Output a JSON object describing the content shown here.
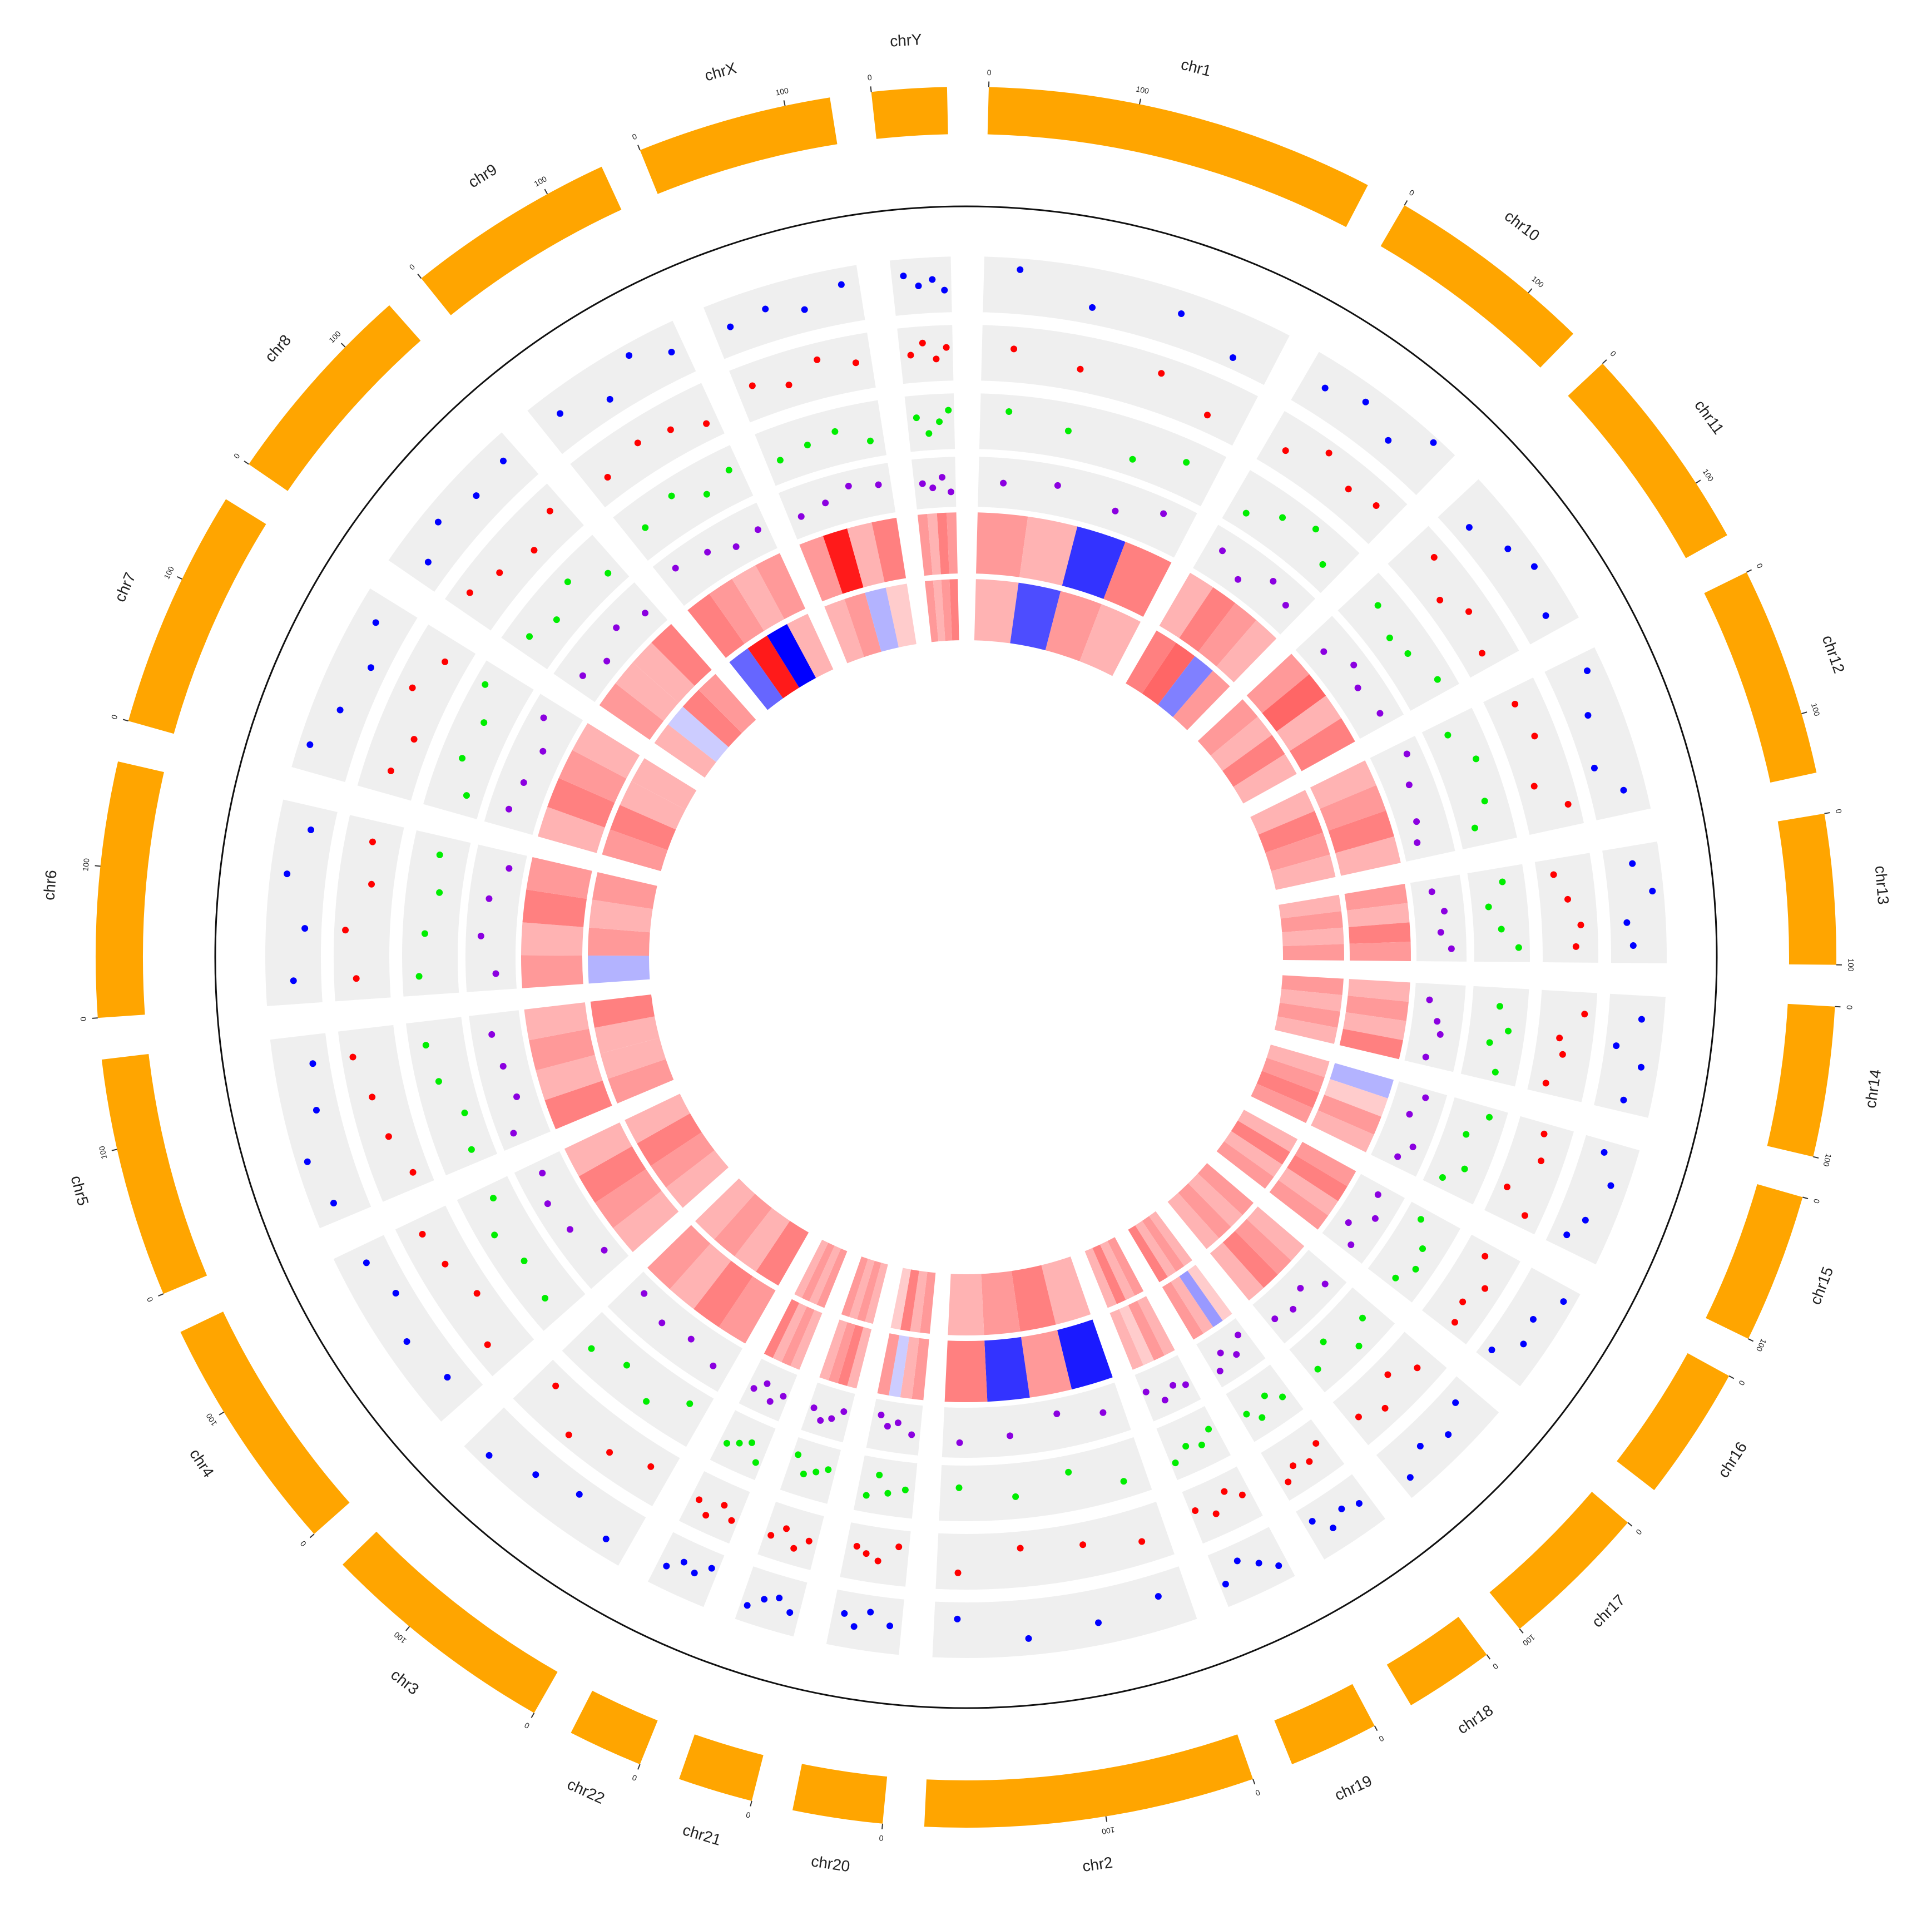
{
  "chart_data": {
    "type": "circos",
    "sectors": [
      "chr1",
      "chr10",
      "chr11",
      "chr12",
      "chr13",
      "chr14",
      "chr15",
      "chr16",
      "chr17",
      "chr18",
      "chr19",
      "chr2",
      "chr20",
      "chr21",
      "chr22",
      "chr3",
      "chr4",
      "chr5",
      "chr6",
      "chr7",
      "chr8",
      "chr9",
      "chrX",
      "chrY"
    ],
    "lengths": [
      260,
      140,
      140,
      140,
      100,
      100,
      100,
      90,
      100,
      60,
      60,
      220,
      60,
      50,
      50,
      160,
      160,
      160,
      170,
      160,
      140,
      140,
      130,
      50
    ],
    "axis_ticks": [
      0,
      100
    ],
    "ideogram_color": "#ffa500",
    "points_x": [
      [
        30,
        95,
        170,
        225
      ],
      [
        20,
        55,
        90,
        120
      ],
      [
        25,
        60,
        85,
        125
      ],
      [
        15,
        50,
        95,
        120
      ],
      [
        15,
        40,
        65,
        85
      ],
      [
        20,
        45,
        60,
        90
      ],
      [
        10,
        35,
        70,
        88
      ],
      [
        12,
        38,
        60,
        80
      ],
      [
        18,
        42,
        66,
        90
      ],
      [
        10,
        25,
        40,
        52
      ],
      [
        8,
        22,
        38,
        55
      ],
      [
        25,
        80,
        140,
        200
      ],
      [
        10,
        28,
        40,
        50
      ],
      [
        8,
        20,
        32,
        44
      ],
      [
        6,
        18,
        30,
        42
      ],
      [
        20,
        60,
        100,
        140
      ],
      [
        25,
        70,
        110,
        145
      ],
      [
        15,
        55,
        95,
        135
      ],
      [
        20,
        65,
        110,
        150
      ],
      [
        22,
        58,
        102,
        138
      ],
      [
        18,
        50,
        88,
        125
      ],
      [
        20,
        62,
        95,
        128
      ],
      [
        15,
        48,
        80,
        115
      ],
      [
        10,
        22,
        34,
        44
      ]
    ],
    "scatter_tracks": [
      {
        "color": "#0000ff",
        "ylim": [
          0,
          1
        ],
        "values": [
          [
            0.8,
            0.3,
            0.6,
            0.2
          ],
          [
            0.5,
            0.7,
            0.4,
            0.9
          ],
          [
            0.3,
            0.6,
            0.8,
            0.5
          ],
          [
            0.7,
            0.4,
            0.2,
            0.6
          ],
          [
            0.5,
            0.8,
            0.3,
            0.4
          ],
          [
            0.6,
            0.2,
            0.7,
            0.5
          ],
          [
            0.4,
            0.7,
            0.5,
            0.3
          ],
          [
            0.8,
            0.5,
            0.6,
            0.2
          ],
          [
            0.3,
            0.6,
            0.4,
            0.7
          ],
          [
            0.5,
            0.4,
            0.6,
            0.3
          ],
          [
            0.7,
            0.5,
            0.3,
            0.6
          ],
          [
            0.4,
            0.6,
            0.7,
            0.3
          ],
          [
            0.5,
            0.3,
            0.6,
            0.4
          ],
          [
            0.6,
            0.4,
            0.5,
            0.7
          ],
          [
            0.3,
            0.5,
            0.4,
            0.6
          ],
          [
            0.7,
            0.3,
            0.5,
            0.8
          ],
          [
            0.4,
            0.6,
            0.3,
            0.5
          ],
          [
            0.6,
            0.8,
            0.4,
            0.3
          ],
          [
            0.5,
            0.3,
            0.7,
            0.4
          ],
          [
            0.8,
            0.5,
            0.3,
            0.6
          ],
          [
            0.4,
            0.7,
            0.5,
            0.6
          ],
          [
            0.6,
            0.3,
            0.8,
            0.5
          ],
          [
            0.5,
            0.6,
            0.4,
            0.7
          ],
          [
            0.7,
            0.5,
            0.6,
            0.4
          ]
        ]
      },
      {
        "color": "#ff0000",
        "ylim": [
          0,
          1
        ],
        "values": [
          [
            0.6,
            0.4,
            0.7,
            0.3
          ],
          [
            0.4,
            0.8,
            0.5,
            0.6
          ],
          [
            0.7,
            0.3,
            0.6,
            0.4
          ],
          [
            0.5,
            0.6,
            0.3,
            0.8
          ],
          [
            0.3,
            0.5,
            0.7,
            0.6
          ],
          [
            0.8,
            0.4,
            0.5,
            0.3
          ],
          [
            0.5,
            0.6,
            0.2,
            0.7
          ],
          [
            0.4,
            0.7,
            0.5,
            0.6
          ],
          [
            0.6,
            0.3,
            0.7,
            0.5
          ],
          [
            0.4,
            0.6,
            0.5,
            0.7
          ],
          [
            0.5,
            0.3,
            0.6,
            0.4
          ],
          [
            0.6,
            0.4,
            0.3,
            0.7
          ],
          [
            0.3,
            0.6,
            0.5,
            0.4
          ],
          [
            0.5,
            0.7,
            0.4,
            0.6
          ],
          [
            0.6,
            0.4,
            0.7,
            0.5
          ],
          [
            0.4,
            0.6,
            0.8,
            0.3
          ],
          [
            0.7,
            0.3,
            0.5,
            0.6
          ],
          [
            0.3,
            0.5,
            0.6,
            0.8
          ],
          [
            0.6,
            0.8,
            0.4,
            0.5
          ],
          [
            0.5,
            0.3,
            0.7,
            0.4
          ],
          [
            0.7,
            0.5,
            0.3,
            0.6
          ],
          [
            0.4,
            0.6,
            0.5,
            0.3
          ],
          [
            0.6,
            0.4,
            0.7,
            0.5
          ],
          [
            0.5,
            0.7,
            0.4,
            0.6
          ]
        ]
      },
      {
        "color": "#00ee00",
        "ylim": [
          0,
          1
        ],
        "values": [
          [
            0.7,
            0.5,
            0.3,
            0.6
          ],
          [
            0.3,
            0.6,
            0.8,
            0.4
          ],
          [
            0.6,
            0.4,
            0.5,
            0.7
          ],
          [
            0.4,
            0.7,
            0.6,
            0.3
          ],
          [
            0.6,
            0.3,
            0.5,
            0.8
          ],
          [
            0.5,
            0.7,
            0.4,
            0.6
          ],
          [
            0.7,
            0.4,
            0.6,
            0.3
          ],
          [
            0.3,
            0.6,
            0.7,
            0.5
          ],
          [
            0.5,
            0.8,
            0.3,
            0.6
          ],
          [
            0.6,
            0.4,
            0.7,
            0.5
          ],
          [
            0.4,
            0.6,
            0.5,
            0.7
          ],
          [
            0.7,
            0.3,
            0.6,
            0.4
          ],
          [
            0.5,
            0.6,
            0.3,
            0.7
          ],
          [
            0.4,
            0.5,
            0.6,
            0.3
          ],
          [
            0.7,
            0.4,
            0.5,
            0.6
          ],
          [
            0.3,
            0.7,
            0.4,
            0.6
          ],
          [
            0.6,
            0.5,
            0.7,
            0.4
          ],
          [
            0.4,
            0.3,
            0.6,
            0.7
          ],
          [
            0.7,
            0.6,
            0.4,
            0.5
          ],
          [
            0.3,
            0.6,
            0.5,
            0.8
          ],
          [
            0.6,
            0.4,
            0.7,
            0.3
          ],
          [
            0.5,
            0.7,
            0.4,
            0.6
          ],
          [
            0.4,
            0.5,
            0.6,
            0.3
          ],
          [
            0.6,
            0.3,
            0.5,
            0.7
          ]
        ]
      },
      {
        "color": "#8b00e0",
        "ylim": [
          0,
          1
        ],
        "values": [
          [
            0.5,
            0.6,
            0.4,
            0.7
          ],
          [
            0.6,
            0.3,
            0.7,
            0.5
          ],
          [
            0.4,
            0.7,
            0.5,
            0.6
          ],
          [
            0.7,
            0.5,
            0.4,
            0.3
          ],
          [
            0.4,
            0.6,
            0.5,
            0.7
          ],
          [
            0.3,
            0.5,
            0.6,
            0.4
          ],
          [
            0.6,
            0.4,
            0.7,
            0.5
          ],
          [
            0.5,
            0.7,
            0.3,
            0.6
          ],
          [
            0.7,
            0.4,
            0.6,
            0.5
          ],
          [
            0.3,
            0.6,
            0.4,
            0.7
          ],
          [
            0.6,
            0.5,
            0.7,
            0.4
          ],
          [
            0.5,
            0.3,
            0.6,
            0.7
          ],
          [
            0.6,
            0.4,
            0.5,
            0.3
          ],
          [
            0.4,
            0.6,
            0.7,
            0.5
          ],
          [
            0.5,
            0.7,
            0.4,
            0.6
          ],
          [
            0.6,
            0.4,
            0.5,
            0.3
          ],
          [
            0.3,
            0.6,
            0.7,
            0.5
          ],
          [
            0.7,
            0.4,
            0.5,
            0.6
          ],
          [
            0.4,
            0.7,
            0.6,
            0.3
          ],
          [
            0.6,
            0.5,
            0.4,
            0.7
          ],
          [
            0.5,
            0.3,
            0.6,
            0.4
          ],
          [
            0.7,
            0.6,
            0.4,
            0.5
          ],
          [
            0.4,
            0.5,
            0.7,
            0.6
          ],
          [
            0.5,
            0.4,
            0.6,
            0.3
          ]
        ]
      }
    ],
    "heat_colors": {
      "low": "#0000ff",
      "mid": "#ffffff",
      "high": "#ff0000"
    },
    "heat_lim": [
      -1,
      1
    ],
    "heatmap_tracks": [
      {
        "values": [
          [
            0.4,
            0.3,
            -0.8,
            0.5
          ],
          [
            0.3,
            0.5,
            0.4,
            0.3
          ],
          [
            0.4,
            0.6,
            0.3,
            0.5
          ],
          [
            0.3,
            0.4,
            0.5,
            0.3
          ],
          [
            0.4,
            0.3,
            0.5,
            0.4
          ],
          [
            0.3,
            0.4,
            0.3,
            0.5
          ],
          [
            -0.3,
            0.2,
            0.4,
            0.3
          ],
          [
            0.4,
            0.5,
            0.3,
            0.4
          ],
          [
            0.3,
            0.4,
            0.5,
            0.3
          ],
          [
            0.2,
            -0.4,
            0.3,
            0.4
          ],
          [
            0.3,
            0.4,
            0.2,
            0.3
          ],
          [
            -0.9,
            0.4,
            -0.8,
            0.5
          ],
          [
            0.4,
            0.3,
            -0.2,
            0.4
          ],
          [
            0.3,
            0.5,
            0.4,
            0.3
          ],
          [
            0.3,
            0.4,
            0.3,
            0.5
          ],
          [
            0.4,
            0.5,
            0.3,
            0.4
          ],
          [
            0.3,
            0.4,
            0.5,
            0.3
          ],
          [
            0.5,
            0.3,
            0.4,
            0.3
          ],
          [
            0.4,
            0.3,
            0.5,
            0.4
          ],
          [
            0.3,
            0.5,
            0.4,
            0.3
          ],
          [
            0.4,
            0.3,
            0.3,
            0.5
          ],
          [
            0.5,
            0.4,
            0.3,
            0.4
          ],
          [
            0.4,
            0.9,
            0.3,
            0.5
          ],
          [
            0.4,
            0.3,
            0.5,
            0.4
          ]
        ]
      },
      {
        "values": [
          [
            0.3,
            -0.7,
            0.4,
            0.3
          ],
          [
            0.5,
            0.6,
            -0.5,
            0.4
          ],
          [
            0.4,
            0.3,
            0.5,
            0.3
          ],
          [
            0.3,
            0.5,
            0.4,
            0.3
          ],
          [
            0.3,
            0.4,
            0.3,
            0.4
          ],
          [
            0.4,
            0.3,
            0.4,
            0.3
          ],
          [
            0.3,
            0.4,
            0.5,
            0.4
          ],
          [
            0.3,
            0.5,
            0.3,
            0.4
          ],
          [
            0.4,
            0.3,
            0.4,
            0.3
          ],
          [
            0.3,
            0.4,
            0.3,
            0.5
          ],
          [
            0.4,
            0.3,
            0.5,
            0.3
          ],
          [
            0.3,
            0.5,
            0.4,
            0.3
          ],
          [
            0.4,
            0.3,
            0.5,
            0.2
          ],
          [
            0.3,
            0.4,
            0.3,
            0.4
          ],
          [
            0.4,
            0.3,
            0.4,
            0.3
          ],
          [
            0.5,
            0.3,
            0.4,
            0.3
          ],
          [
            0.3,
            0.4,
            0.5,
            0.3
          ],
          [
            0.4,
            0.3,
            0.3,
            0.5
          ],
          [
            -0.3,
            0.4,
            0.3,
            0.4
          ],
          [
            0.4,
            0.5,
            0.3,
            0.3
          ],
          [
            0.3,
            -0.2,
            0.5,
            0.4
          ],
          [
            -0.6,
            0.9,
            -1,
            0.3
          ],
          [
            0.3,
            0.4,
            -0.3,
            0.2
          ],
          [
            0.4,
            0.3,
            0.4,
            0.5
          ]
        ]
      }
    ]
  }
}
